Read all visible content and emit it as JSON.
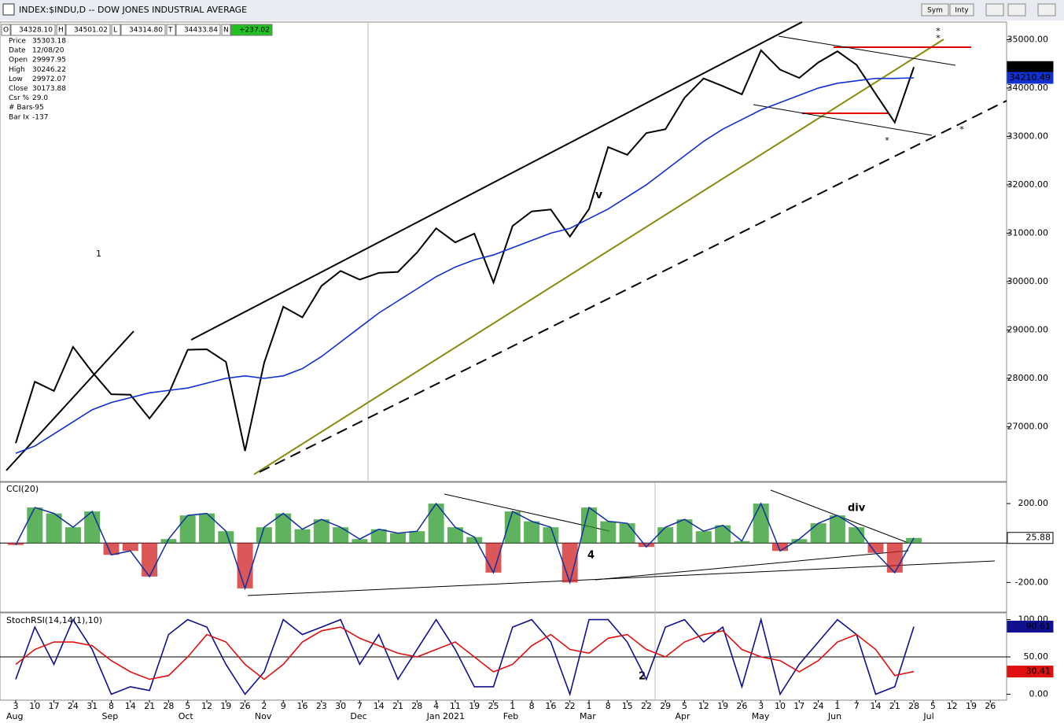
{
  "header": {
    "title": "INDEX:$INDU,D -- DOW JONES INDUSTRIAL AVERAGE",
    "ohlc": [
      {
        "key": "O",
        "value": "34328.10"
      },
      {
        "key": "H",
        "value": "34501.02"
      },
      {
        "key": "L",
        "value": "34314.80"
      },
      {
        "key": "T",
        "value": "34433.84"
      },
      {
        "key": "N",
        "value": "+237.02"
      }
    ],
    "buttons": [
      "Sym",
      "Inty"
    ]
  },
  "info": [
    {
      "label": "Price",
      "value": "35303.18"
    },
    {
      "label": "Date",
      "value": "12/08/20"
    },
    {
      "label": "Open",
      "value": "29997.95"
    },
    {
      "label": "High",
      "value": "30246.22"
    },
    {
      "label": "Low",
      "value": "29972.07"
    },
    {
      "label": "Close",
      "value": "30173.88"
    },
    {
      "label": "Csr %",
      "value": "29.0"
    },
    {
      "label": "# Bars",
      "value": "-95"
    },
    {
      "label": "Bar Ix",
      "value": "-137"
    }
  ],
  "chart_data": [
    {
      "type": "line",
      "categories": [
        "3",
        "10",
        "17",
        "24",
        "31",
        "8",
        "14",
        "21",
        "28",
        "5",
        "12",
        "19",
        "26",
        "2",
        "9",
        "16",
        "23",
        "30",
        "7",
        "14",
        "21",
        "28",
        "4",
        "11",
        "19",
        "25",
        "1",
        "8",
        "16",
        "22",
        "1",
        "8",
        "15",
        "22",
        "29",
        "5",
        "12",
        "19",
        "26",
        "3",
        "10",
        "17",
        "24",
        "1",
        "7",
        "14",
        "21",
        "28",
        "5",
        "12",
        "19",
        "26"
      ],
      "months": [
        "Aug",
        "Sep",
        "Oct",
        "Nov",
        "Dec",
        "Jan 2021",
        "Feb",
        "Mar",
        "Apr",
        "May",
        "Jun",
        "Jul"
      ],
      "ylim": [
        25900,
        35300
      ],
      "yticks": [
        {
          "value": 27000,
          "label": "27000.00"
        },
        {
          "value": 28000,
          "label": "28000.00"
        },
        {
          "value": 29000,
          "label": "29000.00"
        },
        {
          "value": 30000,
          "label": "30000.00"
        },
        {
          "value": 31000,
          "label": "31000.00"
        },
        {
          "value": 32000,
          "label": "32000.00"
        },
        {
          "value": 33000,
          "label": "33000.00"
        },
        {
          "value": 34000,
          "label": "34000.00"
        },
        {
          "value": 35000,
          "label": "35000.00"
        }
      ],
      "annotations": [
        {
          "text": "1",
          "color": "#000000"
        },
        {
          "text": "v",
          "color": "#c000c0"
        }
      ],
      "series": [
        {
          "name": "Price",
          "color": "#000000",
          "last_label": "34433.84",
          "tag_bg": "#000000",
          "values": [
            26660,
            27930,
            27740,
            28650,
            28130,
            27670,
            27660,
            27170,
            27680,
            28590,
            28600,
            28340,
            26500,
            28320,
            29480,
            29260,
            29910,
            30220,
            30040,
            30180,
            30200,
            30600,
            31100,
            30810,
            30990,
            29980,
            31150,
            31450,
            31490,
            30930,
            31500,
            32780,
            32620,
            33070,
            33150,
            33800,
            34200,
            34040,
            33870,
            34780,
            34380,
            34210,
            34530,
            34760,
            34480,
            33880,
            33290,
            34433.84,
            null,
            null,
            null,
            null
          ]
        },
        {
          "name": "MA",
          "color": "#1030d0",
          "last_label": "34210.49",
          "tag_bg": "#1030d0",
          "values": [
            26450,
            26600,
            26850,
            27100,
            27350,
            27500,
            27600,
            27700,
            27750,
            27800,
            27900,
            28000,
            28050,
            28000,
            28050,
            28200,
            28450,
            28750,
            29050,
            29350,
            29600,
            29850,
            30100,
            30300,
            30450,
            30550,
            30700,
            30850,
            31000,
            31100,
            31300,
            31500,
            31750,
            32000,
            32300,
            32600,
            32900,
            33150,
            33350,
            33550,
            33700,
            33850,
            34000,
            34100,
            34150,
            34200,
            34200,
            34210.49,
            null,
            null,
            null,
            null
          ]
        }
      ]
    },
    {
      "type": "bar",
      "title": "CCI(20)",
      "ylim": [
        -350,
        300
      ],
      "yticks": [
        {
          "value": 200,
          "label": "200.00"
        },
        {
          "value": -200,
          "label": "-200.00"
        }
      ],
      "annotations": [
        {
          "text": "4",
          "color": "#e00000"
        },
        {
          "text": "div",
          "color": "#e00000"
        }
      ],
      "pos_color": "#2a9a2a",
      "neg_color": "#d02020",
      "series": [
        {
          "name": "CCI",
          "color": "#1030a0",
          "last_label": "25.88",
          "tag_bg": "#ffffff",
          "values": [
            -10,
            180,
            150,
            80,
            160,
            -60,
            -40,
            -170,
            20,
            140,
            150,
            60,
            -230,
            80,
            150,
            70,
            120,
            80,
            20,
            70,
            50,
            60,
            200,
            80,
            30,
            -150,
            160,
            110,
            80,
            -200,
            180,
            110,
            100,
            -20,
            80,
            120,
            60,
            90,
            10,
            200,
            -40,
            20,
            100,
            140,
            80,
            -50,
            -150,
            25.88,
            null,
            null,
            null,
            null
          ]
        }
      ]
    },
    {
      "type": "line",
      "title": "StochRSI(14,14(1),10)",
      "ylim": [
        -8,
        108
      ],
      "yticks": [
        {
          "value": 100,
          "label": "100.00"
        },
        {
          "value": 50,
          "label": "50.00"
        },
        {
          "value": 0,
          "label": "0.00"
        }
      ],
      "annotations": [
        {
          "text": "2",
          "color": "#e00000"
        }
      ],
      "series": [
        {
          "name": "StochRSI",
          "color": "#101090",
          "last_label": "90.61",
          "tag_bg": "#101090",
          "values": [
            20,
            90,
            40,
            100,
            60,
            0,
            10,
            5,
            80,
            100,
            90,
            40,
            0,
            30,
            100,
            80,
            90,
            100,
            40,
            80,
            20,
            60,
            100,
            60,
            10,
            10,
            90,
            100,
            70,
            0,
            100,
            100,
            70,
            20,
            90,
            100,
            70,
            90,
            10,
            100,
            0,
            40,
            70,
            100,
            80,
            0,
            10,
            90.61,
            null,
            null,
            null,
            null
          ]
        },
        {
          "name": "Signal",
          "color": "#e01010",
          "last_label": "30.41",
          "tag_bg": "#e01010",
          "values": [
            40,
            60,
            70,
            70,
            65,
            45,
            30,
            20,
            25,
            50,
            80,
            70,
            40,
            20,
            40,
            70,
            85,
            90,
            75,
            65,
            55,
            50,
            60,
            70,
            50,
            30,
            40,
            65,
            80,
            60,
            55,
            75,
            80,
            60,
            50,
            70,
            80,
            85,
            60,
            50,
            45,
            30,
            45,
            70,
            80,
            60,
            25,
            30.41,
            null,
            null,
            null,
            null
          ]
        }
      ]
    }
  ]
}
